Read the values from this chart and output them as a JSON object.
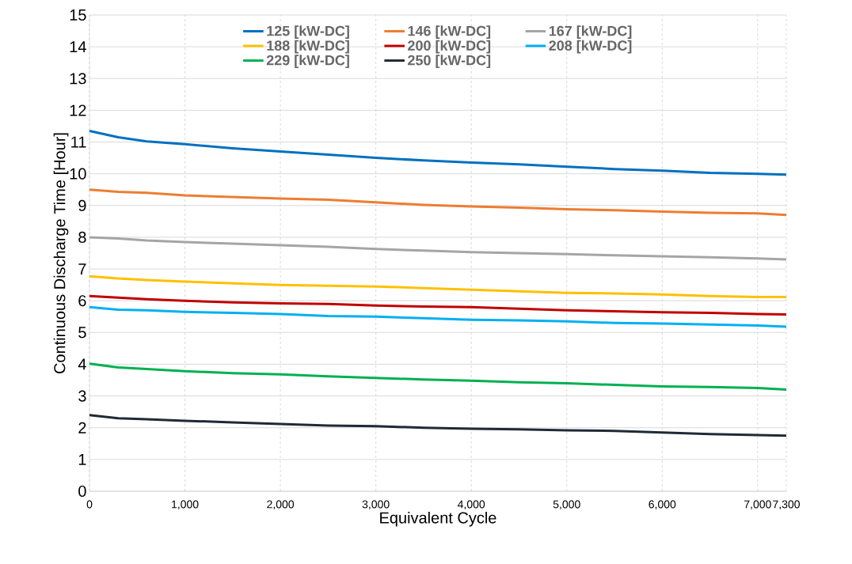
{
  "chart_data": {
    "type": "line",
    "xlabel": "Equivalent Cycle",
    "ylabel": "Continuous Discharge Time [Hour]",
    "x": [
      0,
      300,
      600,
      1000,
      1500,
      2000,
      2500,
      3000,
      3500,
      4000,
      4500,
      5000,
      5500,
      6000,
      6500,
      7000,
      7300
    ],
    "xlim": [
      0,
      7300
    ],
    "ylim": [
      0,
      15
    ],
    "xticks": [
      0,
      {
        "value": 1000,
        "label": "1,000"
      },
      {
        "value": 2000,
        "label": "2,000"
      },
      {
        "value": 3000,
        "label": "3,000"
      },
      {
        "value": 4000,
        "label": "4,000"
      },
      {
        "value": 5000,
        "label": "5,000"
      },
      {
        "value": 6000,
        "label": "6,000"
      },
      {
        "value": 7000,
        "label": "7,000"
      },
      {
        "value": 7300,
        "label": "7,300"
      }
    ],
    "yticks": [
      0,
      1,
      2,
      3,
      4,
      5,
      6,
      7,
      8,
      9,
      10,
      11,
      12,
      13,
      14,
      15
    ],
    "grid": true,
    "legend": "top",
    "marker": "none",
    "line_style": "solid",
    "series": [
      {
        "name": "125 [kW-DC]",
        "color": "#0070c0",
        "values": [
          11.35,
          11.15,
          11.02,
          10.93,
          10.8,
          10.7,
          10.6,
          10.5,
          10.42,
          10.35,
          10.3,
          10.22,
          10.15,
          10.1,
          10.03,
          10.0,
          9.97
        ]
      },
      {
        "name": "146 [kW-DC]",
        "color": "#ed7d31",
        "values": [
          9.5,
          9.43,
          9.4,
          9.32,
          9.27,
          9.22,
          9.18,
          9.1,
          9.02,
          8.97,
          8.93,
          8.88,
          8.85,
          8.81,
          8.77,
          8.75,
          8.7
        ]
      },
      {
        "name": "167 [kW-DC]",
        "color": "#a5a5a5",
        "values": [
          8.0,
          7.96,
          7.9,
          7.85,
          7.8,
          7.75,
          7.7,
          7.63,
          7.58,
          7.53,
          7.5,
          7.47,
          7.43,
          7.4,
          7.37,
          7.33,
          7.3
        ]
      },
      {
        "name": "188 [kW-DC]",
        "color": "#ffc000",
        "values": [
          6.77,
          6.7,
          6.65,
          6.6,
          6.55,
          6.5,
          6.47,
          6.45,
          6.4,
          6.35,
          6.3,
          6.25,
          6.23,
          6.2,
          6.15,
          6.12,
          6.12
        ]
      },
      {
        "name": "200 [kW-DC]",
        "color": "#c00000",
        "values": [
          6.15,
          6.1,
          6.05,
          6.0,
          5.95,
          5.92,
          5.9,
          5.85,
          5.82,
          5.8,
          5.75,
          5.7,
          5.67,
          5.64,
          5.62,
          5.58,
          5.57
        ]
      },
      {
        "name": "208 [kW-DC]",
        "color": "#00b0f0",
        "values": [
          5.8,
          5.72,
          5.7,
          5.65,
          5.62,
          5.58,
          5.52,
          5.5,
          5.45,
          5.4,
          5.38,
          5.35,
          5.3,
          5.28,
          5.25,
          5.22,
          5.18
        ]
      },
      {
        "name": "229 [kW-DC]",
        "color": "#00b050",
        "values": [
          4.02,
          3.9,
          3.85,
          3.78,
          3.72,
          3.68,
          3.62,
          3.57,
          3.52,
          3.48,
          3.43,
          3.4,
          3.35,
          3.3,
          3.28,
          3.25,
          3.2
        ]
      },
      {
        "name": "250 [kW-DC]",
        "color": "#1f2a36",
        "values": [
          2.4,
          2.3,
          2.27,
          2.22,
          2.17,
          2.12,
          2.07,
          2.05,
          2.0,
          1.97,
          1.95,
          1.92,
          1.9,
          1.85,
          1.8,
          1.77,
          1.75
        ]
      }
    ]
  }
}
